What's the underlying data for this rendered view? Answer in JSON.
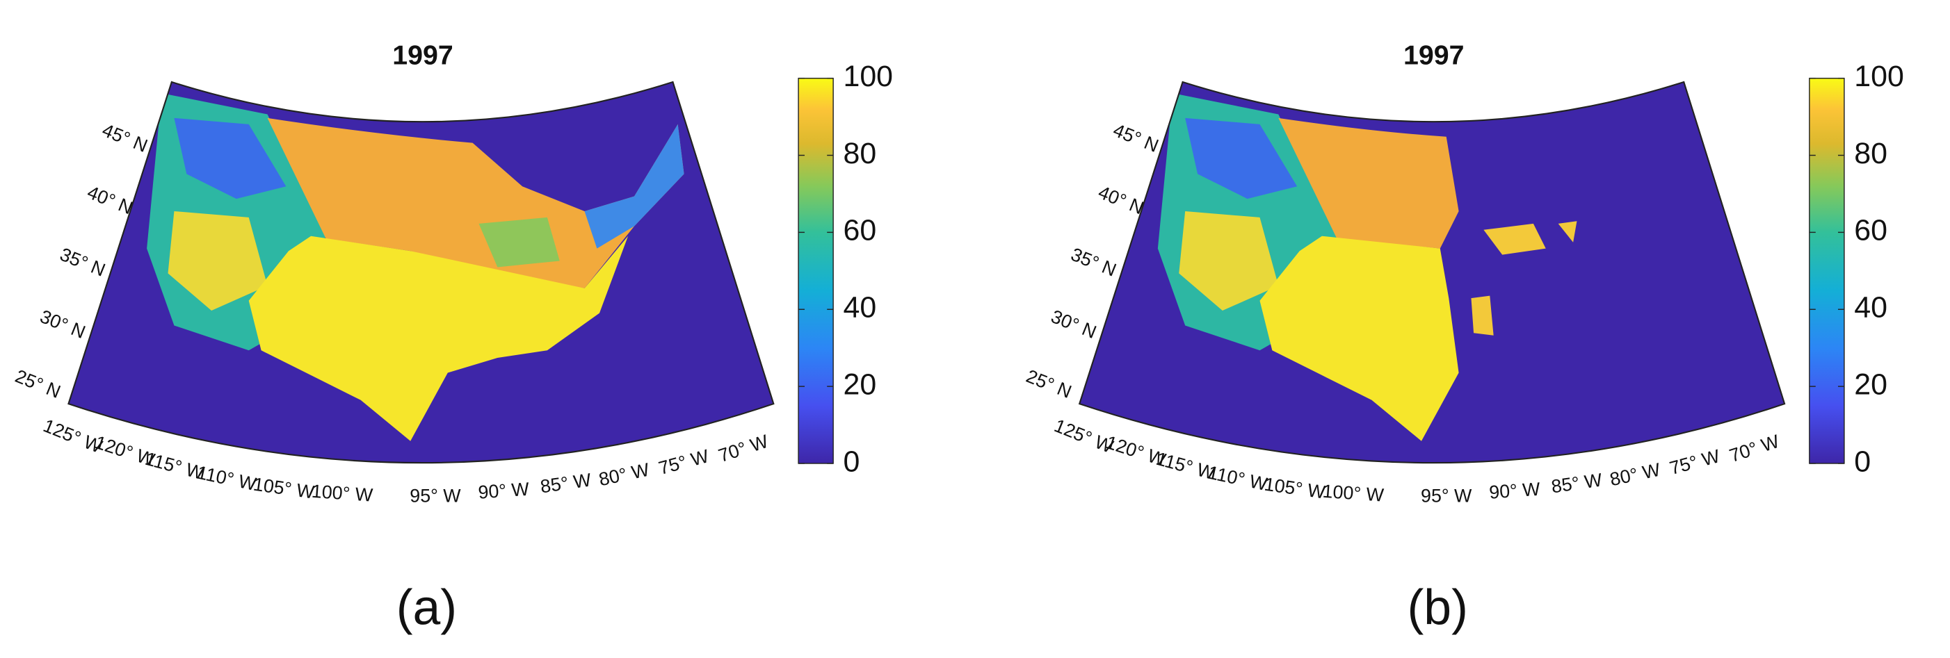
{
  "panels": [
    {
      "title": "1997",
      "caption": "(a)",
      "colorbar": {
        "lim": [
          0,
          100
        ],
        "ticks": [
          0,
          20,
          40,
          60,
          80,
          100
        ]
      },
      "lat_labels": [
        "45° N",
        "40° N",
        "35° N",
        "30° N",
        "25° N"
      ],
      "lon_labels": [
        "125° W",
        "120° W",
        "115° W",
        "110° W",
        "105° W",
        "100° W",
        "95° W",
        "90° W",
        "85° W",
        "80° W",
        "75° W",
        "70° W"
      ]
    },
    {
      "title": "1997",
      "caption": "(b)",
      "colorbar": {
        "lim": [
          0,
          100
        ],
        "ticks": [
          0,
          20,
          40,
          60,
          80,
          100
        ]
      },
      "lat_labels": [
        "45° N",
        "40° N",
        "35° N",
        "30° N",
        "25° N"
      ],
      "lon_labels": [
        "125° W",
        "120° W",
        "115° W",
        "110° W",
        "105° W",
        "100° W",
        "95° W",
        "90° W",
        "85° W",
        "80° W",
        "75° W",
        "70° W"
      ]
    }
  ]
}
